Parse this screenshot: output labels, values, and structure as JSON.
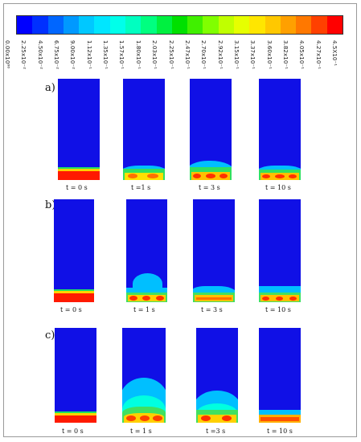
{
  "colorbar": {
    "colors": [
      "#0000ff",
      "#0030ff",
      "#0066ff",
      "#0099ff",
      "#00c8ff",
      "#00e6ff",
      "#00ffea",
      "#00ffc0",
      "#00ff80",
      "#00f040",
      "#00e000",
      "#40f000",
      "#80ff00",
      "#c0ff00",
      "#e6ff00",
      "#ffe600",
      "#ffc800",
      "#ffa000",
      "#ff7800",
      "#ff4000",
      "#ff0000"
    ],
    "ticks": [
      "0.00x10⁰⁰",
      "2.25x10⁻²",
      "4.50x10⁻²",
      "6.75x10⁻²",
      "9.00x10⁻²",
      "1.12x10⁻¹",
      "1.35x10⁻¹",
      "1.57x10⁻¹",
      "1.80x10⁻¹",
      "2.03x10⁻¹",
      "2.25x10⁻¹",
      "2.47x10⁻¹",
      "2.70x10⁻¹",
      "2.92x10⁻¹",
      "3.15x10⁻¹",
      "3.37x10⁻¹",
      "3.60x10⁻¹",
      "3.82x10⁻¹",
      "4.05x10⁻¹",
      "4.27x10⁻¹",
      "4.5X10⁻¹"
    ]
  },
  "rows": [
    {
      "label": "a)",
      "captions": [
        "t = 0 s",
        "t =1 s",
        "t = 3 s",
        "t = 10 s"
      ]
    },
    {
      "label": "b)",
      "captions": [
        "t = 0 s",
        "t = 1 s",
        "t = 3 s",
        "t = 10 s"
      ]
    },
    {
      "label": "c)",
      "captions": [
        "t = 0 s",
        "t = 1 s",
        "t =3 s",
        "t = 10 s"
      ]
    }
  ]
}
